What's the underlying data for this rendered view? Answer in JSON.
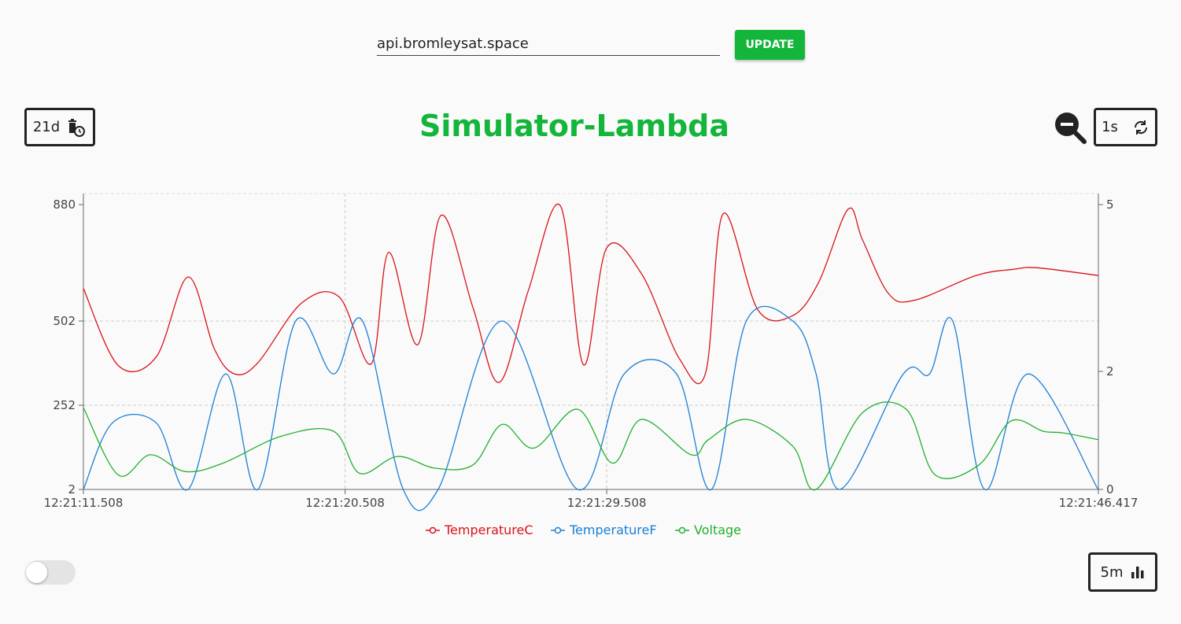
{
  "api": {
    "host_value": "api.bromleysat.space",
    "update_label": "UPDATE"
  },
  "controls": {
    "retention_label": "21d",
    "refresh_label": "1s",
    "window_label": "5m",
    "live_toggle_on": false
  },
  "colors": {
    "accent": "#13b53a",
    "temperature_c": "#d9131b",
    "temperature_f": "#1a7fd6",
    "voltage": "#22b02e"
  },
  "chart_data": {
    "type": "line",
    "title": "Simulator-Lambda",
    "x_tick_labels": [
      "12:21:11.508",
      "12:21:20.508",
      "12:21:29.508",
      "12:21:46.417"
    ],
    "x_ticks_seconds": [
      0,
      9,
      18,
      34.909
    ],
    "x_range_seconds": [
      0,
      34.909
    ],
    "y_left": {
      "ticks": [
        2,
        252,
        502,
        880
      ],
      "range": [
        2,
        880
      ],
      "scale": "piecewise"
    },
    "y_right": {
      "ticks": [
        0,
        2,
        5
      ],
      "range": [
        0,
        5
      ]
    },
    "grid": true,
    "legend_position": "bottom-center",
    "series": [
      {
        "name": "TemperatureC",
        "color": "#d9131b",
        "axis": "left",
        "x": [
          0,
          1.2,
          2.5,
          3.6,
          4.5,
          5.2,
          6.0,
          7.5,
          8.8,
          9.9,
          10.5,
          11.5,
          12.3,
          13.4,
          14.3,
          15.3,
          16.4,
          17.2,
          18.0,
          19.2,
          20.5,
          21.4,
          22.0,
          23.2,
          24.4,
          25.3,
          26.3,
          26.8,
          27.7,
          28.6,
          30.7,
          32.0,
          32.8,
          34.9
        ],
        "y": [
          608,
          370,
          395,
          645,
          420,
          345,
          378,
          560,
          580,
          375,
          725,
          432,
          845,
          545,
          320,
          600,
          877,
          372,
          740,
          655,
          390,
          348,
          850,
          538,
          520,
          630,
          865,
          765,
          590,
          570,
          650,
          670,
          675,
          650
        ],
        "y_units": "left-axis",
        "values": [
          608,
          370,
          395,
          645,
          420,
          345,
          378,
          560,
          580,
          375,
          725,
          432,
          845,
          545,
          320,
          600,
          877,
          372,
          740,
          655,
          390,
          348,
          850,
          538,
          520,
          630,
          865,
          765,
          590,
          570,
          650,
          670,
          675,
          650
        ]
      },
      {
        "name": "TemperatureF",
        "color": "#1a7fd6",
        "axis": "left",
        "x": [
          0,
          1.0,
          2.5,
          3.6,
          4.9,
          6.0,
          7.3,
          8.6,
          9.6,
          11.0,
          12.2,
          14.4,
          17.0,
          18.6,
          20.4,
          21.6,
          22.8,
          24.4,
          25.2,
          26.0,
          28.2,
          29.1,
          29.9,
          31.0,
          32.5,
          34.9
        ],
        "y": [
          2,
          200,
          200,
          2,
          345,
          2,
          502,
          345,
          502,
          2,
          2,
          502,
          2,
          345,
          345,
          2,
          502,
          502,
          345,
          2,
          345,
          345,
          502,
          2,
          345,
          2
        ],
        "values": [
          2,
          200,
          200,
          2,
          345,
          2,
          502,
          345,
          502,
          2,
          2,
          502,
          2,
          345,
          345,
          2,
          502,
          502,
          345,
          2,
          345,
          345,
          502,
          2,
          345,
          2
        ]
      },
      {
        "name": "Voltage",
        "color": "#22b02e",
        "axis": "left",
        "x": [
          0,
          1.2,
          2.3,
          3.5,
          4.8,
          6.8,
          8.6,
          9.5,
          10.8,
          12.1,
          13.4,
          14.4,
          15.5,
          17.0,
          18.2,
          19.2,
          20.9,
          21.5,
          22.8,
          24.4,
          25.2,
          26.8,
          28.3,
          29.3,
          30.8,
          31.9,
          33.0,
          33.7,
          34.9
        ],
        "y": [
          245,
          45,
          105,
          55,
          80,
          160,
          175,
          50,
          100,
          65,
          75,
          195,
          125,
          240,
          80,
          210,
          105,
          150,
          210,
          130,
          2,
          230,
          240,
          45,
          75,
          205,
          175,
          170,
          150
        ],
        "values": [
          245,
          45,
          105,
          55,
          80,
          160,
          175,
          50,
          100,
          65,
          75,
          195,
          125,
          240,
          80,
          210,
          105,
          150,
          210,
          130,
          2,
          230,
          240,
          45,
          75,
          205,
          175,
          170,
          150
        ]
      }
    ]
  }
}
